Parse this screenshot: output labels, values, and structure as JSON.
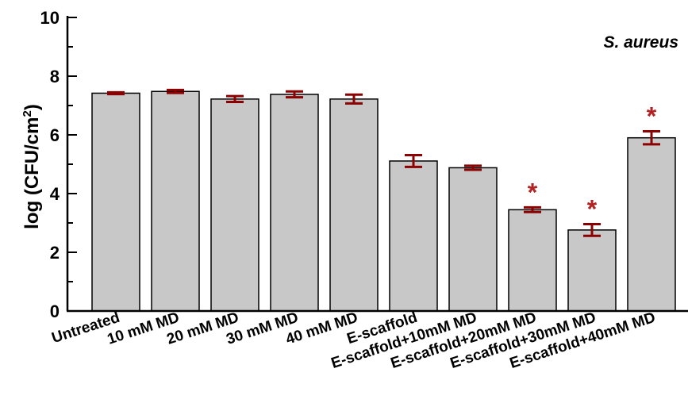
{
  "chart_data": {
    "type": "bar",
    "annotation": "S. aureus",
    "xlabel": "",
    "ylabel_main": "log (CFU/cm",
    "ylabel_sup": "2",
    "ylabel_close": ")",
    "ylim": [
      0,
      10
    ],
    "yticks": [
      "0",
      "2",
      "4",
      "6",
      "8",
      "10"
    ],
    "categories": [
      "Untreated",
      "10 mM MD",
      "20 mM MD",
      "30 mM MD",
      "40 mM MD",
      "E-scaffold",
      "E-scaffold+10mM MD",
      "E-scaffold+20mM MD",
      "E-scaffold+30mM MD",
      "E-scaffold+40mM MD"
    ],
    "values": [
      7.42,
      7.48,
      7.22,
      7.38,
      7.22,
      5.11,
      4.88,
      3.45,
      2.76,
      5.9
    ],
    "errors": [
      0.03,
      0.05,
      0.1,
      0.1,
      0.15,
      0.2,
      0.07,
      0.08,
      0.2,
      0.22
    ],
    "significance": [
      "",
      "",
      "",
      "",
      "",
      "",
      "",
      "*",
      "*",
      "*"
    ],
    "bar_color": "#c8c8c8",
    "error_color": "#8b0000",
    "marker_color": "#b22222",
    "grid": false,
    "legend": "none"
  }
}
